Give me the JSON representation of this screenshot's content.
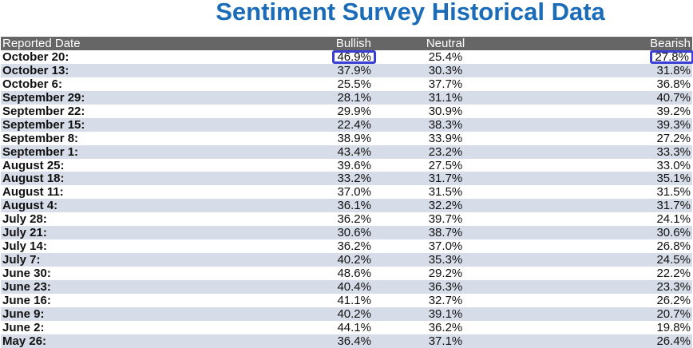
{
  "title": "Sentiment Survey Historical Data",
  "columns": [
    "Reported Date",
    "Bullish",
    "Neutral",
    "Bearish"
  ],
  "rows": [
    {
      "date": "October 20:",
      "bullish": "46.9%",
      "neutral": "25.4%",
      "bearish": "27.8%",
      "highlight": true
    },
    {
      "date": "October 13:",
      "bullish": "37.9%",
      "neutral": "30.3%",
      "bearish": "31.8%"
    },
    {
      "date": "October 6:",
      "bullish": "25.5%",
      "neutral": "37.7%",
      "bearish": "36.8%"
    },
    {
      "date": "September 29:",
      "bullish": "28.1%",
      "neutral": "31.1%",
      "bearish": "40.7%"
    },
    {
      "date": "September 22:",
      "bullish": "29.9%",
      "neutral": "30.9%",
      "bearish": "39.2%"
    },
    {
      "date": "September 15:",
      "bullish": "22.4%",
      "neutral": "38.3%",
      "bearish": "39.3%"
    },
    {
      "date": "September 8:",
      "bullish": "38.9%",
      "neutral": "33.9%",
      "bearish": "27.2%"
    },
    {
      "date": "September 1:",
      "bullish": "43.4%",
      "neutral": "23.2%",
      "bearish": "33.3%"
    },
    {
      "date": "August 25:",
      "bullish": "39.6%",
      "neutral": "27.5%",
      "bearish": "33.0%"
    },
    {
      "date": "August 18:",
      "bullish": "33.2%",
      "neutral": "31.7%",
      "bearish": "35.1%"
    },
    {
      "date": "August 11:",
      "bullish": "37.0%",
      "neutral": "31.5%",
      "bearish": "31.5%"
    },
    {
      "date": "August 4:",
      "bullish": "36.1%",
      "neutral": "32.2%",
      "bearish": "31.7%"
    },
    {
      "date": "July 28:",
      "bullish": "36.2%",
      "neutral": "39.7%",
      "bearish": "24.1%"
    },
    {
      "date": "July 21:",
      "bullish": "30.6%",
      "neutral": "38.7%",
      "bearish": "30.6%"
    },
    {
      "date": "July 14:",
      "bullish": "36.2%",
      "neutral": "37.0%",
      "bearish": "26.8%"
    },
    {
      "date": "July 7:",
      "bullish": "40.2%",
      "neutral": "35.3%",
      "bearish": "24.5%"
    },
    {
      "date": "June 30:",
      "bullish": "48.6%",
      "neutral": "29.2%",
      "bearish": "22.2%"
    },
    {
      "date": "June 23:",
      "bullish": "40.4%",
      "neutral": "36.3%",
      "bearish": "23.3%"
    },
    {
      "date": "June 16:",
      "bullish": "41.1%",
      "neutral": "32.7%",
      "bearish": "26.2%"
    },
    {
      "date": "June 9:",
      "bullish": "40.2%",
      "neutral": "39.1%",
      "bearish": "20.7%"
    },
    {
      "date": "June 2:",
      "bullish": "44.1%",
      "neutral": "36.2%",
      "bearish": "19.8%"
    },
    {
      "date": "May 26:",
      "bullish": "36.4%",
      "neutral": "37.1%",
      "bearish": "26.4%"
    }
  ],
  "colors": {
    "title": "#1a6bb8",
    "header_bg": "#666666",
    "alt_row_bg": "#d6dce8",
    "highlight_border": "#3b3fd6"
  }
}
